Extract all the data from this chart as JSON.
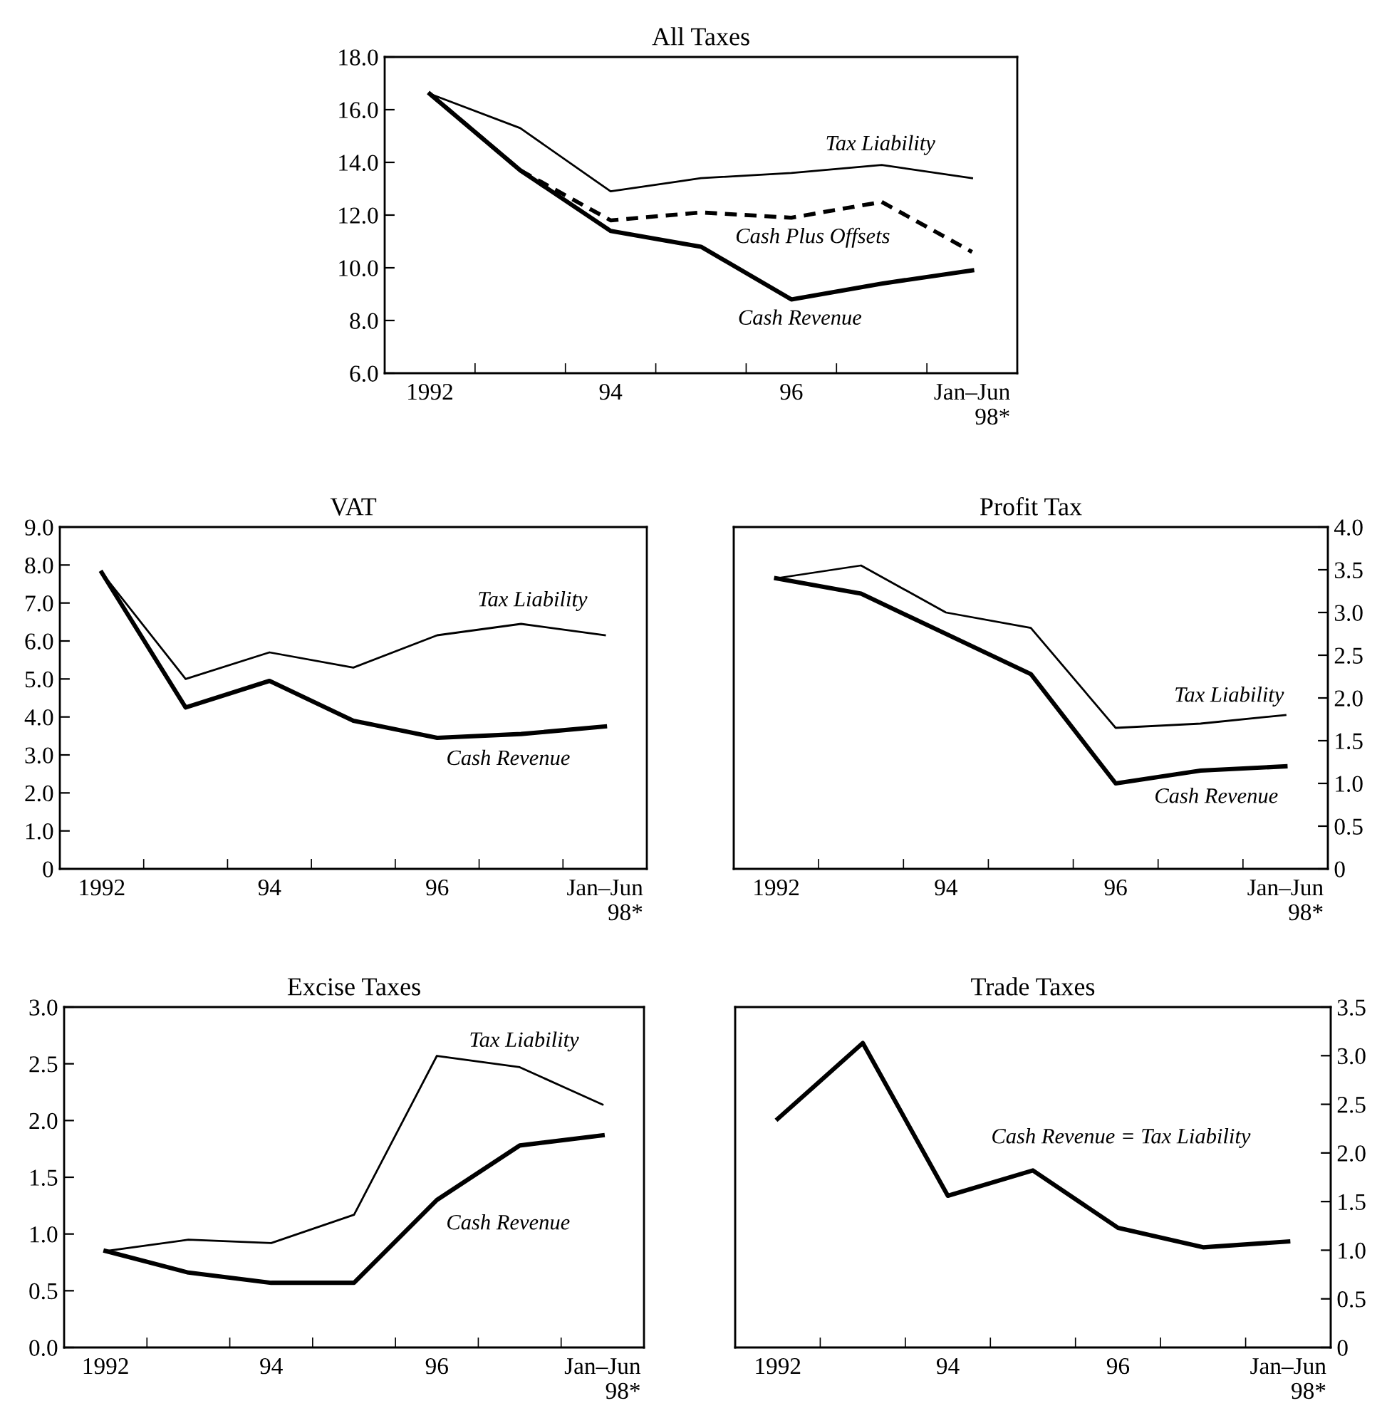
{
  "chart_data": [
    {
      "type": "line",
      "title": "All Taxes",
      "categories": [
        "1992",
        null,
        "94",
        null,
        "96",
        null,
        "Jan–Jun\n98*"
      ],
      "ylim": [
        6,
        18
      ],
      "yticks": [
        {
          "value": 6,
          "label": "6.0"
        },
        {
          "value": 8,
          "label": "8.0"
        },
        {
          "value": 10,
          "label": "10.0"
        },
        {
          "value": 12,
          "label": "12.0"
        },
        {
          "value": 14,
          "label": "14.0"
        },
        {
          "value": 16,
          "label": "16.0"
        },
        {
          "value": 18,
          "label": "18.0"
        }
      ],
      "series": [
        {
          "name": "Tax Liability",
          "color": "#000000",
          "line_style": "solid",
          "values": [
            16.6,
            15.3,
            12.9,
            13.4,
            13.6,
            13.9,
            13.4
          ]
        },
        {
          "name": "Cash Plus Offsets",
          "color": "#000000",
          "line_style": "dashed",
          "values": [
            16.6,
            13.7,
            11.8,
            12.1,
            11.9,
            12.5,
            10.6
          ]
        },
        {
          "name": "Cash Revenue",
          "color": "#000000",
          "line_style": "solid",
          "values": [
            16.6,
            13.7,
            11.4,
            10.8,
            8.8,
            9.4,
            9.9
          ]
        }
      ]
    },
    {
      "type": "line",
      "title": "VAT",
      "categories": [
        "1992",
        null,
        "94",
        null,
        "96",
        null,
        "Jan–Jun\n98*"
      ],
      "ylim": [
        0,
        9
      ],
      "yticks": [
        0,
        {
          "value": 1,
          "label": "1.0"
        },
        {
          "value": 2,
          "label": "2.0"
        },
        {
          "value": 3,
          "label": "3.0"
        },
        {
          "value": 4,
          "label": "4.0"
        },
        {
          "value": 5,
          "label": "5.0"
        },
        {
          "value": 6,
          "label": "6.0"
        },
        {
          "value": 7,
          "label": "7.0"
        },
        {
          "value": 8,
          "label": "8.0"
        },
        {
          "value": 9,
          "label": "9.0"
        }
      ],
      "series": [
        {
          "name": "Tax Liability",
          "color": "#000000",
          "line_style": "solid",
          "values": [
            7.8,
            5.0,
            5.7,
            5.3,
            6.15,
            6.45,
            6.15
          ]
        },
        {
          "name": "Cash Revenue",
          "color": "#000000",
          "line_style": "solid",
          "values": [
            7.8,
            4.25,
            4.95,
            3.9,
            3.45,
            3.55,
            3.75
          ]
        }
      ]
    },
    {
      "type": "line",
      "title": "Profit Tax",
      "categories": [
        "1992",
        null,
        "94",
        null,
        "96",
        null,
        "Jan–Jun\n98*"
      ],
      "y2lim": [
        0,
        4
      ],
      "y2ticks": [
        0,
        0.5,
        {
          "value": 1,
          "label": "1.0"
        },
        1.5,
        {
          "value": 2,
          "label": "2.0"
        },
        2.5,
        {
          "value": 3,
          "label": "3.0"
        },
        3.5,
        {
          "value": 4,
          "label": "4.0"
        }
      ],
      "series": [
        {
          "name": "Tax Liability",
          "color": "#000000",
          "line_style": "solid",
          "axis": "y2",
          "values": [
            3.4,
            3.55,
            3.0,
            2.82,
            1.65,
            1.7,
            1.8
          ]
        },
        {
          "name": "Cash Revenue",
          "color": "#000000",
          "line_style": "solid",
          "axis": "y2",
          "values": [
            3.4,
            3.22,
            2.75,
            2.28,
            1.0,
            1.15,
            1.2
          ]
        }
      ]
    },
    {
      "type": "line",
      "title": "Excise Taxes",
      "categories": [
        "1992",
        null,
        "94",
        null,
        "96",
        null,
        "Jan–Jun\n98*"
      ],
      "ylim": [
        0,
        3
      ],
      "yticks": [
        {
          "value": 0,
          "label": "0.0"
        },
        0.5,
        {
          "value": 1,
          "label": "1.0"
        },
        1.5,
        {
          "value": 2,
          "label": "2.0"
        },
        2.5,
        {
          "value": 3,
          "label": "3.0"
        }
      ],
      "series": [
        {
          "name": "Tax Liability",
          "color": "#000000",
          "line_style": "solid",
          "values": [
            0.85,
            0.95,
            0.92,
            1.17,
            2.57,
            2.47,
            2.14
          ]
        },
        {
          "name": "Cash Revenue",
          "color": "#000000",
          "line_style": "solid",
          "values": [
            0.85,
            0.66,
            0.57,
            0.57,
            1.3,
            1.78,
            1.87
          ]
        }
      ]
    },
    {
      "type": "line",
      "title": "Trade Taxes",
      "categories": [
        "1992",
        null,
        "94",
        null,
        "96",
        null,
        "Jan–Jun\n98*"
      ],
      "y2lim": [
        0,
        3.5
      ],
      "y2ticks": [
        0,
        0.5,
        {
          "value": 1,
          "label": "1.0"
        },
        1.5,
        {
          "value": 2,
          "label": "2.0"
        },
        2.5,
        {
          "value": 3,
          "label": "3.0"
        },
        3.5
      ],
      "series": [
        {
          "name": "Cash Revenue = Tax Liability",
          "color": "#000000",
          "line_style": "solid",
          "axis": "y2",
          "values": [
            2.35,
            3.13,
            1.56,
            1.82,
            1.23,
            1.03,
            1.09
          ]
        }
      ]
    }
  ]
}
